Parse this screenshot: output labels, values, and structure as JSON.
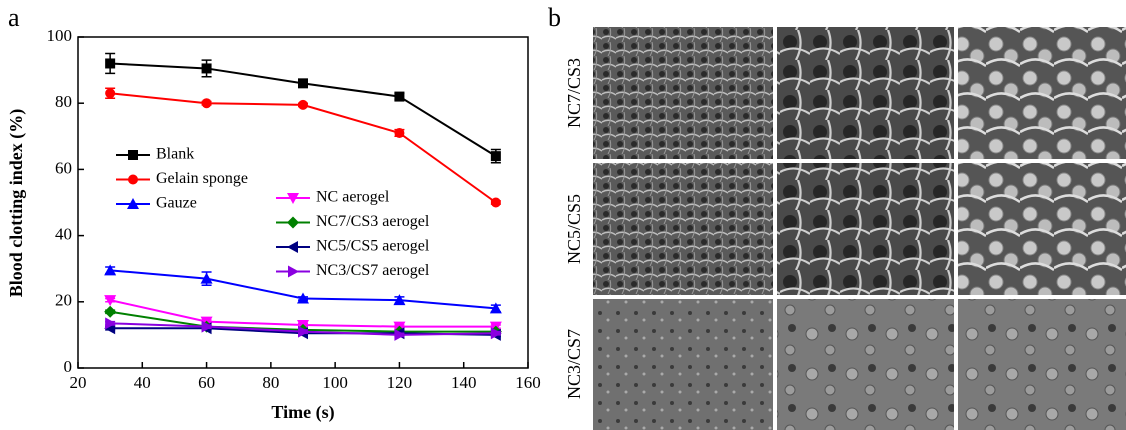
{
  "figure": {
    "panel_labels": [
      "a",
      "b"
    ],
    "row_labels": [
      "NC7/CS3",
      "NC5/CS5",
      "NC3/CS7"
    ]
  },
  "chart_data": {
    "type": "line",
    "x_label": "Time (s)",
    "y_label": "Blood clotting index (%)",
    "x": [
      30,
      60,
      90,
      120,
      150
    ],
    "xlim": [
      20,
      160
    ],
    "xticks": [
      20,
      40,
      60,
      80,
      100,
      120,
      140,
      160
    ],
    "ylim": [
      0,
      100
    ],
    "yticks": [
      0,
      20,
      40,
      60,
      80,
      100
    ],
    "grid": false,
    "series": [
      {
        "name": "Blank",
        "color": "#000000",
        "marker": "square",
        "values": [
          92,
          90.5,
          86,
          82,
          64
        ],
        "errors": [
          3,
          2.5,
          0.5,
          1,
          2
        ]
      },
      {
        "name": "Gelain sponge",
        "color": "#ff0000",
        "marker": "circle",
        "values": [
          83,
          80,
          79.5,
          71,
          50
        ],
        "errors": [
          1.5,
          0.5,
          0.5,
          1,
          0.5
        ]
      },
      {
        "name": "Gauze",
        "color": "#0000ff",
        "marker": "up",
        "values": [
          29.5,
          27,
          21,
          20.5,
          18
        ],
        "errors": [
          1,
          2,
          0.5,
          1,
          1
        ]
      },
      {
        "name": "NC aerogel",
        "color": "#ff00ff",
        "marker": "down",
        "values": [
          20.5,
          14,
          13,
          12.5,
          12.5
        ],
        "errors": [
          0.5,
          0.5,
          0.5,
          0.5,
          0.5
        ]
      },
      {
        "name": "NC7/CS3 aerogel",
        "color": "#008000",
        "marker": "diamond",
        "values": [
          17,
          12.5,
          11.5,
          11,
          11
        ],
        "errors": [
          0.5,
          0.5,
          0.5,
          0.5,
          0.5
        ]
      },
      {
        "name": "NC5/CS5 aerogel",
        "color": "#000080",
        "marker": "left",
        "values": [
          12,
          12,
          10.5,
          10.5,
          10
        ],
        "errors": [
          0.5,
          0.5,
          0.5,
          0.5,
          0.5
        ]
      },
      {
        "name": "NC3/CS7 aerogel",
        "color": "#8a00e0",
        "marker": "right",
        "values": [
          13.5,
          12.5,
          11,
          10,
          10.5
        ],
        "errors": [
          0.5,
          0.5,
          0.5,
          0.5,
          0.5
        ]
      }
    ]
  }
}
